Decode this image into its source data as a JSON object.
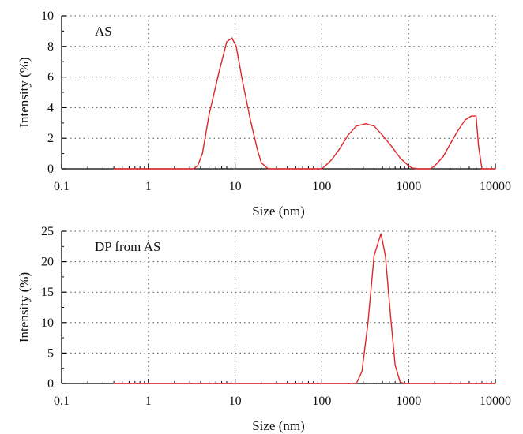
{
  "colors": {
    "series": "#e0262a",
    "axis": "#000000",
    "grid": "#555555",
    "background": "#ffffff"
  },
  "chart_data": [
    {
      "type": "line",
      "panel_label": "AS",
      "xlabel": "Size (nm)",
      "ylabel": "Intensity (%)",
      "x_scale": "log",
      "xlim": [
        0.1,
        10000
      ],
      "ylim": [
        0,
        10
      ],
      "x_ticks": [
        0.1,
        1,
        10,
        100,
        1000,
        10000
      ],
      "x_tick_labels": [
        "0.1",
        "1",
        "10",
        "100",
        "1000",
        "10000"
      ],
      "y_ticks": [
        0,
        2,
        4,
        6,
        8,
        10
      ],
      "y_tick_labels": [
        "0",
        "2",
        "4",
        "6",
        "8",
        "10"
      ],
      "grid": true,
      "series": [
        {
          "x": [
            0.4,
            1,
            2,
            3.3,
            3.7,
            4.2,
            5,
            6.5,
            8,
            9.2,
            10.3,
            12,
            15,
            18,
            20,
            24,
            30,
            50,
            80,
            100,
            110,
            130,
            160,
            200,
            250,
            320,
            400,
            500,
            650,
            800,
            1000,
            1100,
            1300,
            1600,
            1800,
            2000,
            2500,
            3000,
            3700,
            4500,
            5300,
            6000,
            6400,
            7000,
            10000
          ],
          "y": [
            0,
            0,
            0,
            0,
            0.2,
            1,
            3.5,
            6.3,
            8.3,
            8.55,
            8,
            5.9,
            3.2,
            1.3,
            0.4,
            0,
            0,
            0,
            0,
            0,
            0.2,
            0.6,
            1.3,
            2.2,
            2.8,
            2.95,
            2.8,
            2.2,
            1.4,
            0.7,
            0.2,
            0.05,
            0,
            0,
            0,
            0.2,
            0.8,
            1.6,
            2.5,
            3.2,
            3.45,
            3.45,
            1.5,
            0,
            0
          ]
        }
      ]
    },
    {
      "type": "line",
      "panel_label": "DP from AS",
      "xlabel": "Size (nm)",
      "ylabel": "Intensity (%)",
      "x_scale": "log",
      "xlim": [
        0.1,
        10000
      ],
      "ylim": [
        0,
        25
      ],
      "x_ticks": [
        0.1,
        1,
        10,
        100,
        1000,
        10000
      ],
      "x_tick_labels": [
        "0.1",
        "1",
        "10",
        "100",
        "1000",
        "10000"
      ],
      "y_ticks": [
        0,
        5,
        10,
        15,
        20,
        25
      ],
      "y_tick_labels": [
        "0",
        "5",
        "10",
        "15",
        "20",
        "25"
      ],
      "grid": true,
      "series": [
        {
          "x": [
            0.4,
            1,
            10,
            100,
            250,
            290,
            340,
            400,
            480,
            540,
            620,
            700,
            800,
            900,
            1000,
            10000
          ],
          "y": [
            0,
            0,
            0,
            0,
            0,
            2,
            10,
            21,
            24.6,
            21,
            11,
            3,
            0.2,
            0,
            0,
            0
          ]
        }
      ]
    }
  ]
}
